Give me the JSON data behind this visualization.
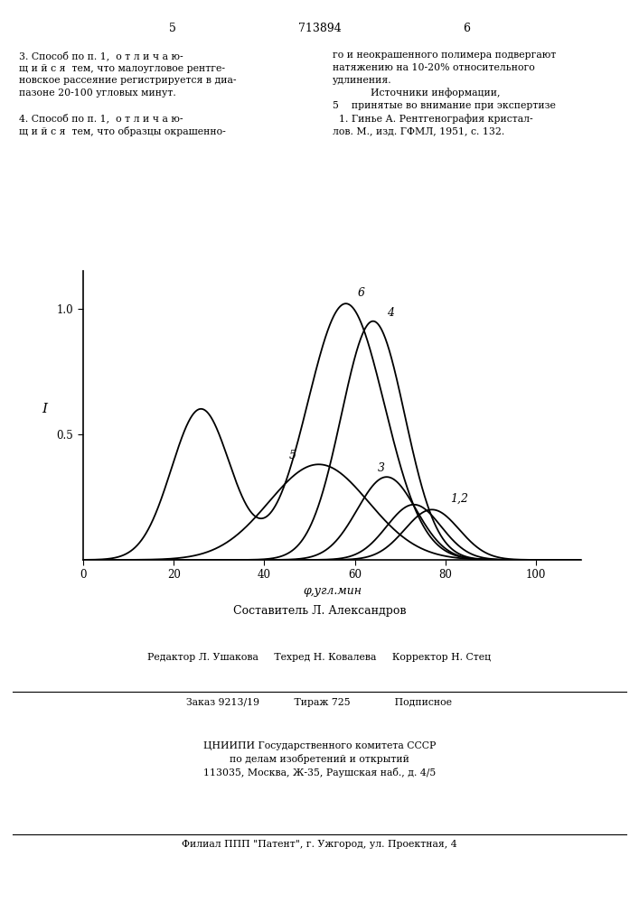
{
  "page_num_left": "5",
  "page_patent": "713894",
  "page_num_right": "6",
  "top_text_left": "3. Способ по п. 1,  о т л и ч а ю-\nщ и й с я  тем, что малоугловое рентге-\nновское рассеяние регистрируется в диа-\nпазоне 20-100 угловых минут.\n\n4. Способ по п. 1,  о т л и ч а ю-\nщ и й с я  тем, что образцы окрашенно-",
  "top_text_right": "го и неокрашенного полимера подвергают\nнатяжению на 10-20% относительного\nудлинения.\n            Источники информации,\n5    принятые во внимание при экспертизе\n  1. Гинье А. Рентгенография кристал-\nлов. М., изд. ГФМЛ, 1951, с. 132.",
  "ylabel": "I",
  "xlabel": "φ,угл.мин",
  "xlim": [
    0,
    110
  ],
  "ylim": [
    0,
    1.15
  ],
  "xticks": [
    0,
    20,
    40,
    60,
    80,
    100
  ],
  "yticks": [
    0.5,
    1.0
  ],
  "composer": "Составитель Л. Александров",
  "editor_line": "Редактор Л. Ушакова     Техред Н. Ковалева     Корректор Н. Стец",
  "order_line": "Заказ 9213/19           Тираж 725              Подписное",
  "org_text": "ЦНИИПИ Государственного комитета СССР\nпо делам изобретений и открытий\n113035, Москва, Ж-35, Раушская наб., д. 4/5",
  "branch_text": "Филиал ППП \"Патент\", г. Ужгород, ул. Проектная, 4",
  "background_color": "#ffffff",
  "curve_color": "#000000"
}
